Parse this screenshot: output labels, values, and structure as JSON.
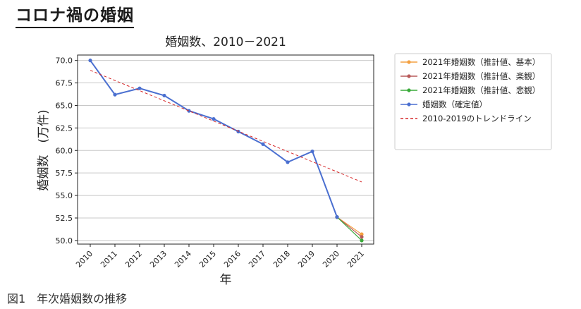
{
  "page": {
    "heading": "コロナ禍の婚姻",
    "caption": "図1　年次婚姻数の推移"
  },
  "chart_data": {
    "type": "line",
    "title": "婚姻数、2010－2021",
    "xlabel": "年",
    "ylabel": "婚姻数　(万件)",
    "categories": [
      "2010",
      "2011",
      "2012",
      "2013",
      "2014",
      "2015",
      "2016",
      "2017",
      "2018",
      "2019",
      "2020",
      "2021"
    ],
    "ylim": [
      49.6,
      70.6
    ],
    "yticks": [
      "50.0",
      "52.5",
      "55.0",
      "57.5",
      "60.0",
      "62.5",
      "65.0",
      "67.5",
      "70.0"
    ],
    "grid": "horizontal",
    "legend_position": "right",
    "series": [
      {
        "name": "2021年婚姻数（推計値、基本）",
        "color": "#f4a040",
        "style": "solid-marker",
        "points": [
          [
            "2020",
            52.6
          ],
          [
            "2021",
            50.7
          ]
        ]
      },
      {
        "name": "2021年婚姻数（推計値、楽観）",
        "color": "#b85a5a",
        "style": "solid-marker",
        "points": [
          [
            "2020",
            52.6
          ],
          [
            "2021",
            50.4
          ]
        ]
      },
      {
        "name": "2021年婚姻数（推計値、悲観）",
        "color": "#3aaa3a",
        "style": "solid-marker",
        "points": [
          [
            "2020",
            52.6
          ],
          [
            "2021",
            50.0
          ]
        ]
      },
      {
        "name": "婚姻数（確定値）",
        "color": "#4a6fd0",
        "style": "solid-marker",
        "points": [
          [
            "2010",
            70.0
          ],
          [
            "2011",
            66.2
          ],
          [
            "2012",
            66.9
          ],
          [
            "2013",
            66.1
          ],
          [
            "2014",
            64.4
          ],
          [
            "2015",
            63.5
          ],
          [
            "2016",
            62.1
          ],
          [
            "2017",
            60.7
          ],
          [
            "2018",
            58.7
          ],
          [
            "2019",
            59.9
          ],
          [
            "2020",
            52.6
          ]
        ]
      },
      {
        "name": "2010-2019のトレンドライン",
        "color": "#d62728",
        "style": "dashed",
        "points": [
          [
            "2010",
            68.9
          ],
          [
            "2021",
            56.5
          ]
        ]
      }
    ]
  }
}
